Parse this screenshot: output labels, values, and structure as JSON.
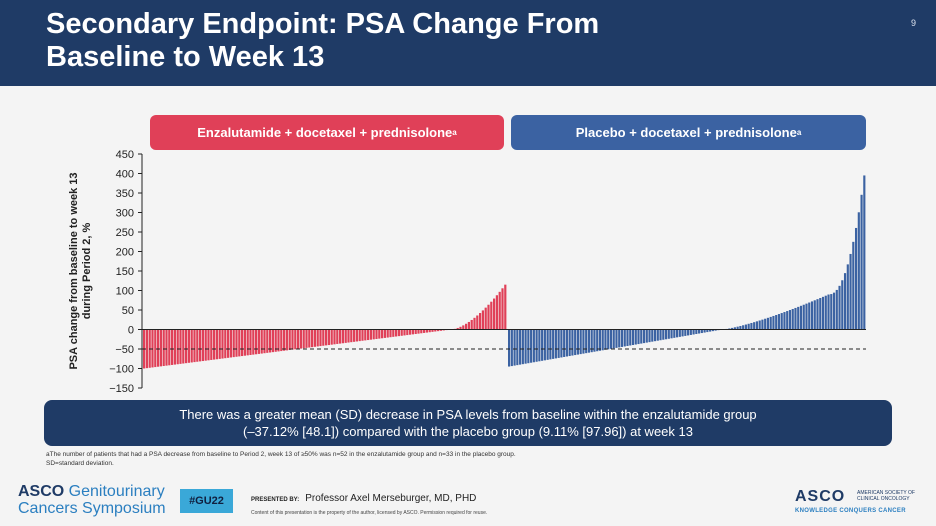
{
  "header": {
    "title": "Secondary Endpoint: PSA Change From\nBaseline to Week 13",
    "slide_number": "9"
  },
  "groups": {
    "left": "Enzalutamide + docetaxel + prednisolone",
    "left_sup": "a",
    "right": "Placebo + docetaxel + prednisolone",
    "right_sup": "a"
  },
  "chart_data": {
    "type": "bar",
    "ylabel": "PSA change from baseline to week 13 during Period 2, %",
    "ylabel_lines": [
      "PSA change from baseline to week 13",
      "during Period 2, %"
    ],
    "ylim": [
      -150,
      450
    ],
    "yticks": [
      450,
      400,
      350,
      300,
      250,
      200,
      150,
      100,
      50,
      0,
      -50,
      -100,
      -150
    ],
    "ytick_labels": [
      "450",
      "400",
      "350",
      "300",
      "250",
      "200",
      "150",
      "100",
      "50",
      "0",
      "−50",
      "−100",
      "−150"
    ],
    "reference_line": -50,
    "colors": {
      "enzalutamide": "#e04058",
      "placebo": "#3b62a2"
    },
    "series": [
      {
        "name": "Enzalutamide + docetaxel + prednisolone",
        "color": "#e04058",
        "n_bars": 130,
        "min": -100,
        "max": 115
      },
      {
        "name": "Placebo + docetaxel + prednisolone",
        "color": "#3b62a2",
        "n_bars": 130,
        "min": -95,
        "max": 395
      }
    ]
  },
  "summary": {
    "line1": "There was a greater mean (SD) decrease in PSA levels from baseline within the enzalutamide group",
    "line2": "(–37.12% [48.1]) compared with the placebo group (9.11% [97.96]) at week 13"
  },
  "footnote": {
    "line1": "aThe number of patients that had a PSA decrease from baseline to Period 2, week 13 of ≥50% was n=52 in the enzalutamide group and n=33 in the placebo group.",
    "line2": "SD=standard deviation."
  },
  "footer": {
    "brand_a": "ASCO",
    "brand_b": " Genitourinary",
    "brand_c": "Cancers Symposium",
    "hashtag": "#GU22",
    "presented_label": "PRESENTED BY:",
    "presenter": "Professor Axel Merseburger, MD, PHD",
    "content_note": "Content of this presentation is the property of the author, licensed by ASCO. Permission required for reuse.",
    "asco_big": "ASCO",
    "asco_small": "AMERICAN SOCIETY OF CLINICAL ONCOLOGY",
    "asco_tag": "KNOWLEDGE CONQUERS CANCER"
  }
}
